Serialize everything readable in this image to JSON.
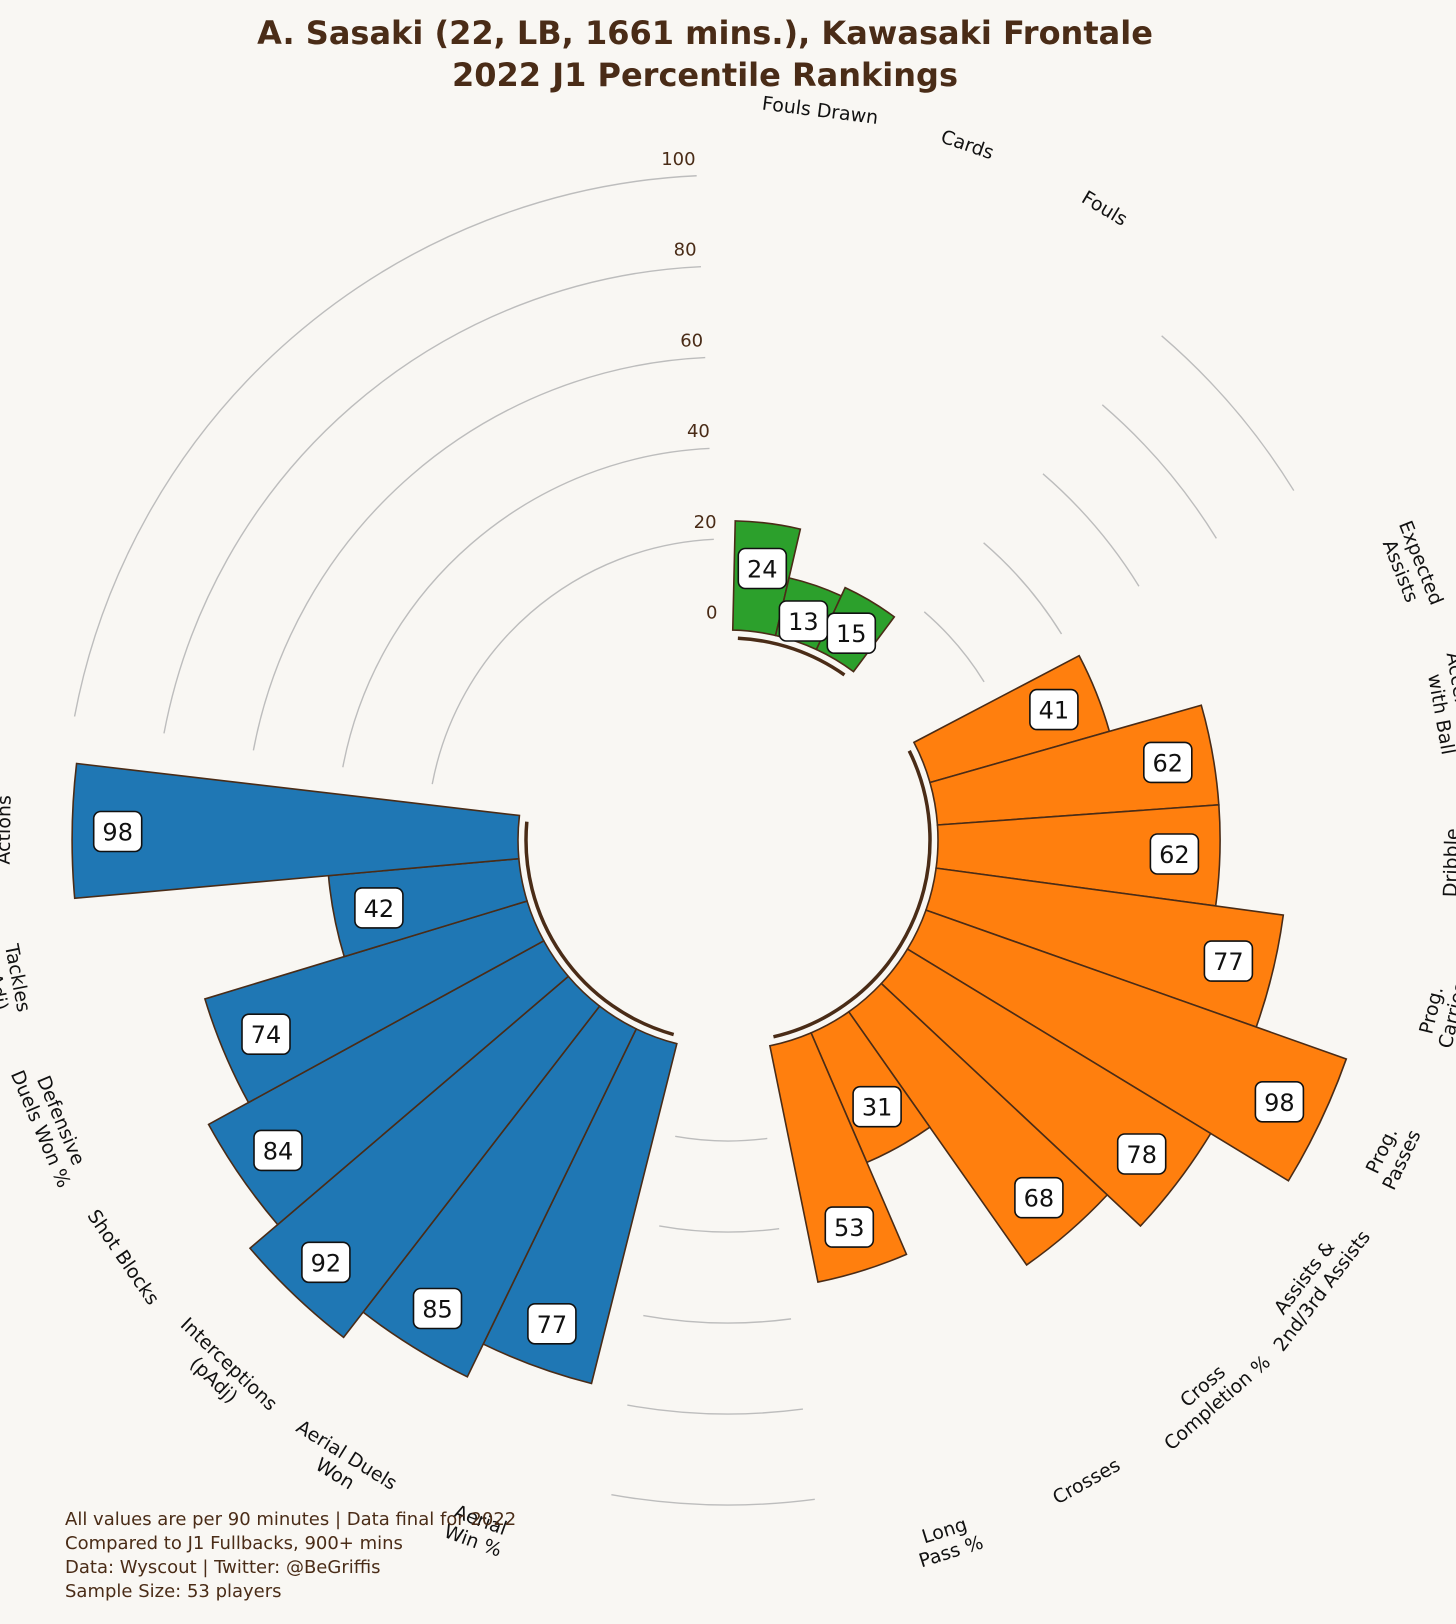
{
  "chart_data": {
    "type": "polar-bar",
    "title": "A. Sasaki (22, LB, 1661 mins.), Kawasaki Frontale",
    "subtitle": "2022 J1 Percentile Rankings",
    "rlim": [
      0,
      100
    ],
    "rticks": [
      "0",
      "20",
      "40",
      "60",
      "80",
      "100"
    ],
    "categories": [
      "Fouls Drawn",
      "Cards",
      "Fouls",
      "Expected\nAssists",
      "Acceleration\nwith Ball",
      "Dribble\nSucces %",
      "Prog.\nCarries",
      "Prog.\nPasses",
      "Assists &\n2nd/3rd Assists",
      "Cross\nCompletion %",
      "Crosses",
      "Long\nPass %",
      "Aerial\nWin %",
      "Aerial Duels\nWon",
      "Interceptions\n(pAdj)",
      "Shot Blocks",
      "Defensive\nDuels Won %",
      "Tackles\n(pAdj)",
      "Defensive\nActions"
    ],
    "values": [
      24,
      13,
      15,
      41,
      62,
      62,
      77,
      98,
      78,
      68,
      31,
      53,
      77,
      85,
      92,
      84,
      74,
      42,
      98
    ],
    "groups": [
      {
        "name": "discipline",
        "color": "#2ca02c",
        "count": 3
      },
      {
        "name": "attacking",
        "color": "#ff7f0e",
        "count": 9
      },
      {
        "name": "defending",
        "color": "#1f77b4",
        "count": 7
      }
    ],
    "edge_color": "#4a2c17"
  },
  "footer": [
    "All values are per 90 minutes | Data final for 2022",
    "Compared to J1 Fullbacks, 900+ mins",
    "Data: Wyscout | Twitter: @BeGriffis",
    "Sample Size: 53 players"
  ]
}
